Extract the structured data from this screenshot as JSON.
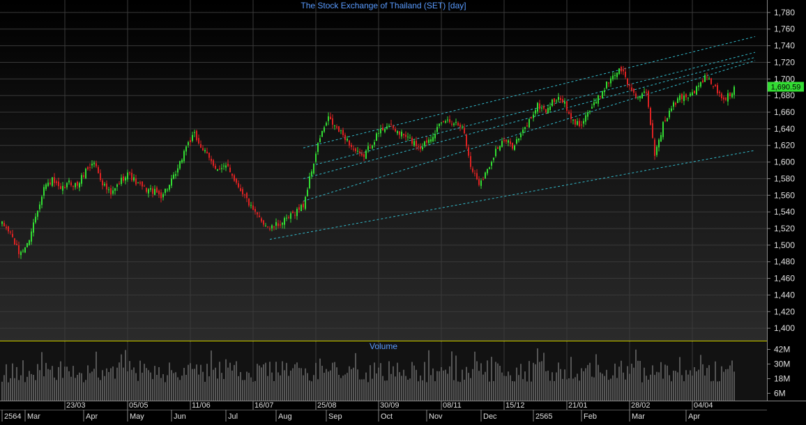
{
  "colors": {
    "background": "#000000",
    "grid": "#3a3a3a",
    "up": "#33dd33",
    "down": "#dd2222",
    "title": "#5a9cff",
    "axis_text": "#e0e0e0",
    "channel": "#33bbcc",
    "last_price_bg": "#33dd33",
    "separator": "#dddd00",
    "volume_bar": "#9a9a9a"
  },
  "chart_data": {
    "type": "candlestick",
    "title": "The Stock Exchange of Thailand (SET) [day]",
    "last_price_label": "1,690.59",
    "price_axis": {
      "ylim": [
        1385,
        1795
      ],
      "ticks": [
        "1,400",
        "1,420",
        "1,440",
        "1,460",
        "1,480",
        "1,500",
        "1,520",
        "1,540",
        "1,560",
        "1,580",
        "1,600",
        "1,620",
        "1,640",
        "1,660",
        "1,680",
        "1,700",
        "1,720",
        "1,740",
        "1,760",
        "1,780"
      ]
    },
    "price_anchors": [
      [
        0,
        1525
      ],
      [
        4,
        1515
      ],
      [
        8,
        1490
      ],
      [
        12,
        1500
      ],
      [
        16,
        1535
      ],
      [
        20,
        1570
      ],
      [
        24,
        1578
      ],
      [
        28,
        1565
      ],
      [
        32,
        1575
      ],
      [
        36,
        1572
      ],
      [
        40,
        1590
      ],
      [
        44,
        1600
      ],
      [
        48,
        1575
      ],
      [
        52,
        1560
      ],
      [
        56,
        1575
      ],
      [
        60,
        1588
      ],
      [
        64,
        1575
      ],
      [
        68,
        1568
      ],
      [
        72,
        1565
      ],
      [
        76,
        1560
      ],
      [
        80,
        1572
      ],
      [
        84,
        1590
      ],
      [
        88,
        1620
      ],
      [
        92,
        1632
      ],
      [
        96,
        1615
      ],
      [
        100,
        1600
      ],
      [
        104,
        1590
      ],
      [
        108,
        1595
      ],
      [
        112,
        1575
      ],
      [
        116,
        1560
      ],
      [
        120,
        1540
      ],
      [
        124,
        1530
      ],
      [
        128,
        1520
      ],
      [
        132,
        1525
      ],
      [
        136,
        1530
      ],
      [
        140,
        1540
      ],
      [
        144,
        1548
      ],
      [
        148,
        1590
      ],
      [
        152,
        1630
      ],
      [
        156,
        1652
      ],
      [
        160,
        1640
      ],
      [
        164,
        1630
      ],
      [
        168,
        1615
      ],
      [
        172,
        1605
      ],
      [
        176,
        1620
      ],
      [
        180,
        1635
      ],
      [
        184,
        1645
      ],
      [
        188,
        1638
      ],
      [
        192,
        1632
      ],
      [
        196,
        1625
      ],
      [
        200,
        1618
      ],
      [
        204,
        1628
      ],
      [
        208,
        1640
      ],
      [
        212,
        1650
      ],
      [
        216,
        1648
      ],
      [
        220,
        1645
      ],
      [
        224,
        1595
      ],
      [
        228,
        1575
      ],
      [
        232,
        1590
      ],
      [
        236,
        1615
      ],
      [
        240,
        1625
      ],
      [
        244,
        1620
      ],
      [
        248,
        1632
      ],
      [
        252,
        1650
      ],
      [
        256,
        1668
      ],
      [
        260,
        1662
      ],
      [
        264,
        1675
      ],
      [
        268,
        1675
      ],
      [
        272,
        1650
      ],
      [
        276,
        1645
      ],
      [
        280,
        1660
      ],
      [
        284,
        1672
      ],
      [
        288,
        1690
      ],
      [
        292,
        1705
      ],
      [
        296,
        1712
      ],
      [
        300,
        1690
      ],
      [
        304,
        1678
      ],
      [
        308,
        1682
      ],
      [
        312,
        1610
      ],
      [
        316,
        1645
      ],
      [
        320,
        1665
      ],
      [
        324,
        1678
      ],
      [
        328,
        1680
      ],
      [
        332,
        1688
      ],
      [
        336,
        1702
      ],
      [
        340,
        1693
      ],
      [
        344,
        1676
      ],
      [
        348,
        1680
      ],
      [
        350,
        1690
      ]
    ],
    "volume_axis": {
      "ylim": [
        0,
        48
      ],
      "ticks": [
        "6M",
        "18M",
        "30M",
        "42M"
      ]
    },
    "volume_label": "Volume",
    "x_axis": {
      "n_bars": 351,
      "date_labels": [
        {
          "bar": 30,
          "label": "23/03"
        },
        {
          "bar": 60,
          "label": "05/05"
        },
        {
          "bar": 90,
          "label": "11/06"
        },
        {
          "bar": 120,
          "label": "16/07"
        },
        {
          "bar": 150,
          "label": "25/08"
        },
        {
          "bar": 180,
          "label": "30/09"
        },
        {
          "bar": 210,
          "label": "08/11"
        },
        {
          "bar": 240,
          "label": "15/12"
        },
        {
          "bar": 270,
          "label": "21/01"
        },
        {
          "bar": 300,
          "label": "28/02"
        },
        {
          "bar": 330,
          "label": "04/04"
        }
      ],
      "period_labels": [
        {
          "bar": 0,
          "label": "2564"
        },
        {
          "bar": 11,
          "label": "Mar"
        },
        {
          "bar": 39,
          "label": "Apr"
        },
        {
          "bar": 60,
          "label": "May"
        },
        {
          "bar": 81,
          "label": "Jun"
        },
        {
          "bar": 107,
          "label": "Jul"
        },
        {
          "bar": 131,
          "label": "Aug"
        },
        {
          "bar": 155,
          "label": "Sep"
        },
        {
          "bar": 180,
          "label": "Oct"
        },
        {
          "bar": 203,
          "label": "Nov"
        },
        {
          "bar": 229,
          "label": "Dec"
        },
        {
          "bar": 254,
          "label": "2565"
        },
        {
          "bar": 277,
          "label": "Feb"
        },
        {
          "bar": 300,
          "label": "Mar"
        },
        {
          "bar": 327,
          "label": "Apr"
        }
      ]
    },
    "trend_channel": [
      {
        "from": [
          144,
          1553
        ],
        "to": [
          360,
          1722
        ]
      },
      {
        "from": [
          144,
          1580
        ],
        "to": [
          360,
          1726
        ]
      },
      {
        "from": [
          144,
          1617
        ],
        "to": [
          360,
          1751
        ]
      },
      {
        "from": [
          128,
          1507
        ],
        "to": [
          360,
          1614
        ]
      },
      {
        "from": [
          150,
          1597
        ],
        "to": [
          360,
          1732
        ]
      }
    ]
  }
}
